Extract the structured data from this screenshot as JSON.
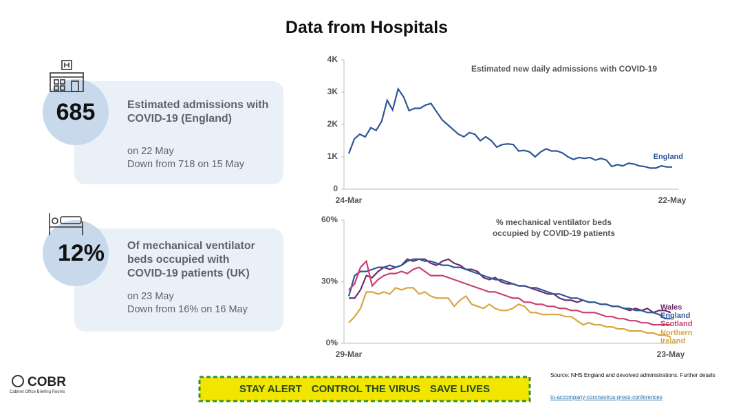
{
  "header": {
    "title": "Data from Hospitals"
  },
  "cards": [
    {
      "number": "685",
      "lead": "Estimated admissions with COVID-19 (England)",
      "date": "on 22 May",
      "change": "Down from 718 on 15 May"
    },
    {
      "number": "12%",
      "lead": "Of mechanical ventilator beds occupied with COVID-19 patients (UK)",
      "date": "on 23 May",
      "change": "Down from 16% on 16 May"
    }
  ],
  "footer": {
    "logo": "COBR",
    "logo_sub": "Cabinet Office Briefing Rooms",
    "banner": [
      "STAY ALERT",
      "CONTROL THE VIRUS",
      "SAVE LIVES"
    ],
    "source": "Source: NHS England and devolved administrations. Further details",
    "link": "to-accompany-coronavirus-press-conferences"
  },
  "chart_data": [
    {
      "type": "line",
      "title": "Estimated new daily admissions with COVID-19",
      "categories": [
        "24-Mar",
        null,
        null,
        null,
        null,
        null,
        null,
        null,
        null,
        null,
        null,
        null,
        null,
        null,
        null,
        null,
        null,
        null,
        null,
        null,
        null,
        null,
        null,
        null,
        null,
        null,
        null,
        null,
        null,
        null,
        null,
        null,
        null,
        null,
        null,
        null,
        null,
        null,
        null,
        null,
        null,
        null,
        null,
        null,
        null,
        null,
        null,
        null,
        null,
        null,
        null,
        null,
        null,
        null,
        null,
        null,
        null,
        null,
        null,
        "22-May"
      ],
      "series": [
        {
          "name": "England",
          "color": "#2e5597",
          "values": [
            1100,
            1550,
            1700,
            1620,
            1900,
            1820,
            2100,
            2750,
            2450,
            3100,
            2850,
            2430,
            2500,
            2500,
            2600,
            2650,
            2400,
            2150,
            2000,
            1850,
            1700,
            1620,
            1750,
            1700,
            1500,
            1620,
            1500,
            1300,
            1380,
            1400,
            1380,
            1180,
            1200,
            1150,
            1000,
            1150,
            1250,
            1180,
            1180,
            1120,
            1000,
            920,
            980,
            950,
            980,
            900,
            950,
            900,
            700,
            760,
            720,
            800,
            780,
            720,
            700,
            650,
            650,
            720,
            690,
            685
          ]
        }
      ],
      "ylim": [
        0,
        4000
      ],
      "yticks": [
        0,
        {
          "value": 1000,
          "label": "1K"
        },
        {
          "value": 2000,
          "label": "2K"
        },
        {
          "value": 3000,
          "label": "3K"
        },
        {
          "value": 4000,
          "label": "4K"
        }
      ]
    },
    {
      "type": "line",
      "title": "% mechanical ventilator beds occupied by COVID-19 patients",
      "categories": [
        "29-Mar",
        null,
        null,
        null,
        null,
        null,
        null,
        null,
        null,
        null,
        null,
        null,
        null,
        null,
        null,
        null,
        null,
        null,
        null,
        null,
        null,
        null,
        null,
        null,
        null,
        null,
        null,
        null,
        null,
        null,
        null,
        null,
        null,
        null,
        null,
        null,
        null,
        null,
        null,
        null,
        null,
        null,
        null,
        null,
        null,
        null,
        null,
        null,
        null,
        null,
        null,
        null,
        null,
        null,
        null,
        "23-May"
      ],
      "series": [
        {
          "name": "Wales",
          "color": "#6b2a6b",
          "values": [
            22,
            22,
            26,
            33,
            32,
            35,
            37,
            36,
            37,
            38,
            41,
            40,
            41,
            41,
            39,
            38,
            40,
            41,
            39,
            38,
            36,
            36,
            35,
            32,
            31,
            32,
            30,
            29,
            29,
            28,
            28,
            27,
            26,
            25,
            24,
            24,
            22,
            21,
            21,
            20,
            21,
            20,
            20,
            19,
            19,
            18,
            18,
            17,
            16,
            17,
            16,
            17,
            15,
            16,
            16,
            15
          ]
        },
        {
          "name": "England",
          "color": "#2e5597",
          "values": [
            23,
            33,
            35,
            35,
            36,
            37,
            37,
            38,
            37,
            38,
            40,
            41,
            41,
            40,
            40,
            39,
            38,
            38,
            37,
            37,
            36,
            35,
            34,
            33,
            32,
            31,
            31,
            30,
            29,
            28,
            28,
            27,
            27,
            26,
            25,
            24,
            24,
            23,
            22,
            22,
            21,
            20,
            20,
            19,
            19,
            18,
            18,
            17,
            17,
            16,
            16,
            15,
            15,
            14,
            12,
            12
          ]
        },
        {
          "name": "Scotland",
          "color": "#c9406e",
          "values": [
            26,
            29,
            37,
            40,
            28,
            31,
            33,
            34,
            34,
            35,
            34,
            36,
            37,
            35,
            33,
            33,
            33,
            32,
            31,
            30,
            29,
            28,
            27,
            26,
            25,
            25,
            24,
            23,
            22,
            22,
            20,
            20,
            19,
            19,
            18,
            18,
            17,
            17,
            16,
            16,
            15,
            15,
            15,
            14,
            13,
            13,
            12,
            12,
            11,
            11,
            10,
            10,
            9,
            9,
            9,
            9
          ]
        },
        {
          "name": "Northern Ireland",
          "color": "#d9a441",
          "values": [
            10,
            13,
            17,
            25,
            25,
            24,
            25,
            24,
            27,
            26,
            27,
            27,
            24,
            25,
            23,
            22,
            22,
            22,
            18,
            21,
            23,
            19,
            18,
            17,
            19,
            17,
            16,
            16,
            17,
            19,
            18,
            15,
            15,
            14,
            14,
            14,
            14,
            13,
            13,
            11,
            9,
            10,
            9,
            9,
            8,
            8,
            7,
            7,
            6,
            6,
            6,
            5,
            5,
            4,
            4,
            3
          ]
        }
      ],
      "ylim": [
        0,
        60
      ],
      "yticks": [
        {
          "value": 0,
          "label": "0%"
        },
        {
          "value": 30,
          "label": "30%"
        },
        {
          "value": 60,
          "label": "60%"
        }
      ]
    }
  ]
}
